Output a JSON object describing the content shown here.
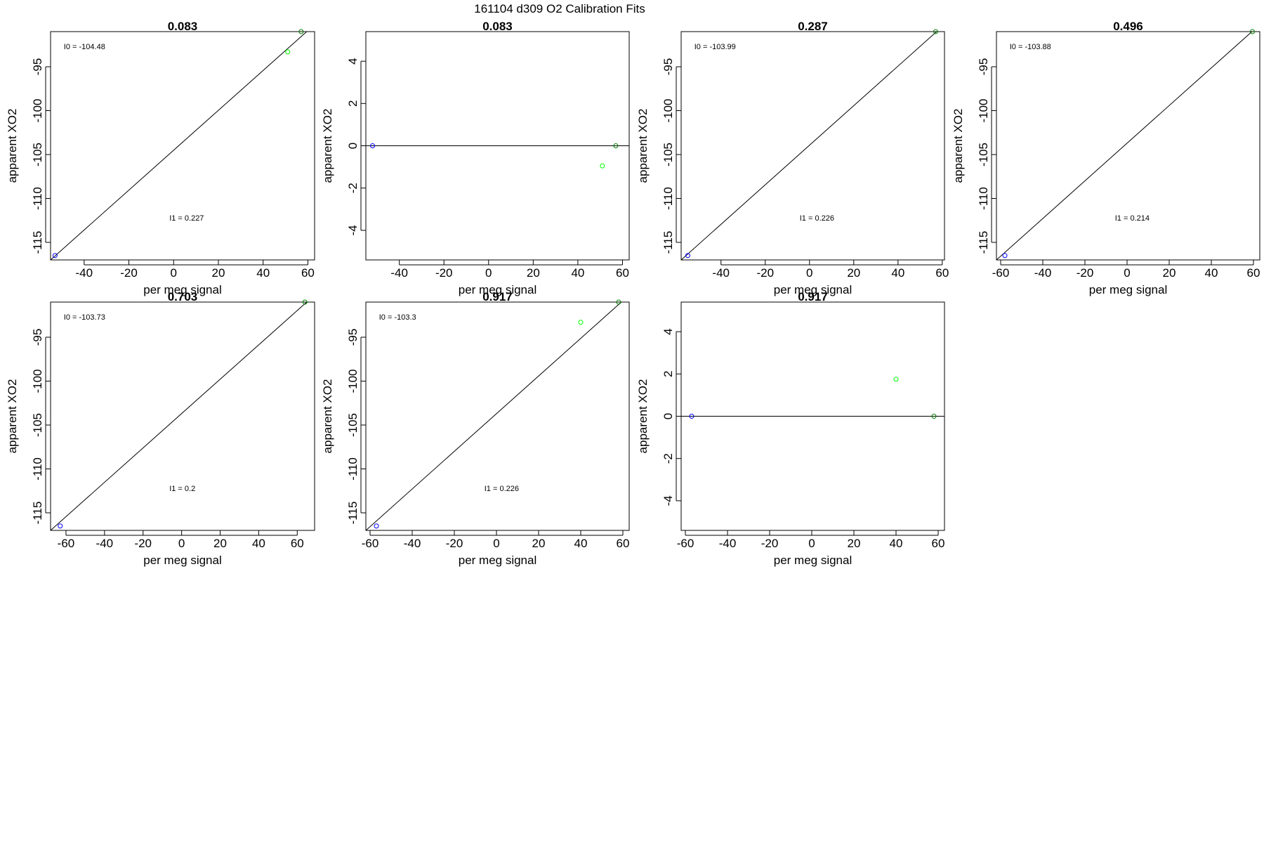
{
  "page_title": "161104   d309   O2 Calibration Fits",
  "colors": {
    "first_point": "#0000ff",
    "second_point": "#00ff00",
    "third_point": "#008000",
    "line": "#000000"
  },
  "chart_data": [
    {
      "type": "scatter",
      "title": "0.083",
      "xlabel": "per meg signal",
      "ylabel": "apparent XO2",
      "xlim": [
        -55,
        63
      ],
      "ylim": [
        -117,
        -91
      ],
      "xticks": [
        -40,
        -20,
        0,
        20,
        40,
        60
      ],
      "yticks": [
        -95,
        -100,
        -105,
        -110,
        -115
      ],
      "line": {
        "x": [
          -55,
          63
        ],
        "y": [
          -117,
          -90.2
        ]
      },
      "points": [
        {
          "x": -53,
          "y": -116.5,
          "color": "#0000ff"
        },
        {
          "x": 51,
          "y": -93.3,
          "color": "#00ff00"
        },
        {
          "x": 57,
          "y": -91,
          "color": "#008000"
        }
      ],
      "annotations": [
        "I0 =  -104.48",
        "I1 =  0.227"
      ]
    },
    {
      "type": "scatter",
      "title": "0.083",
      "xlabel": "per meg signal",
      "ylabel": "apparent XO2",
      "xlim": [
        -55,
        63
      ],
      "ylim": [
        -5.4,
        5.4
      ],
      "xticks": [
        -40,
        -20,
        0,
        20,
        40,
        60
      ],
      "yticks": [
        4,
        2,
        0,
        -2,
        -4
      ],
      "line": {
        "x": [
          -55,
          63
        ],
        "y": [
          0,
          0
        ]
      },
      "points": [
        {
          "x": -52,
          "y": 0,
          "color": "#0000ff"
        },
        {
          "x": 51,
          "y": -0.95,
          "color": "#00ff00"
        },
        {
          "x": 57,
          "y": 0,
          "color": "#008000"
        }
      ],
      "annotations": []
    },
    {
      "type": "scatter",
      "title": "0.287",
      "xlabel": "per meg signal",
      "ylabel": "apparent XO2",
      "xlim": [
        -58,
        61
      ],
      "ylim": [
        -117,
        -91
      ],
      "xticks": [
        -40,
        -20,
        0,
        20,
        40,
        60
      ],
      "yticks": [
        -95,
        -100,
        -105,
        -110,
        -115
      ],
      "line": {
        "x": [
          -58,
          61
        ],
        "y": [
          -117,
          -90.2
        ]
      },
      "points": [
        {
          "x": -55,
          "y": -116.5,
          "color": "#0000ff"
        },
        {
          "x": 57,
          "y": -91,
          "color": "#008000"
        }
      ],
      "annotations": [
        "I0 =  -103.99",
        "I1 =  0.226"
      ]
    },
    {
      "type": "scatter",
      "title": "0.496",
      "xlabel": "per meg signal",
      "ylabel": "apparent XO2",
      "xlim": [
        -62,
        63
      ],
      "ylim": [
        -117,
        -91
      ],
      "xticks": [
        -60,
        -40,
        -20,
        0,
        20,
        40,
        60
      ],
      "yticks": [
        -95,
        -100,
        -105,
        -110,
        -115
      ],
      "line": {
        "x": [
          -62,
          63
        ],
        "y": [
          -117,
          -90.2
        ]
      },
      "points": [
        {
          "x": -58,
          "y": -116.5,
          "color": "#0000ff"
        },
        {
          "x": 59.5,
          "y": -91,
          "color": "#008000"
        }
      ],
      "annotations": [
        "I0 =  -103.88",
        "I1 =  0.214"
      ]
    },
    {
      "type": "scatter",
      "title": "0.703",
      "xlabel": "per meg signal",
      "ylabel": "apparent XO2",
      "xlim": [
        -68,
        69
      ],
      "ylim": [
        -117,
        -91
      ],
      "xticks": [
        -60,
        -40,
        -20,
        0,
        20,
        40,
        60
      ],
      "yticks": [
        -95,
        -100,
        -105,
        -110,
        -115
      ],
      "line": {
        "x": [
          -68,
          69
        ],
        "y": [
          -117,
          -90.2
        ]
      },
      "points": [
        {
          "x": -63,
          "y": -116.5,
          "color": "#0000ff"
        },
        {
          "x": 64,
          "y": -91,
          "color": "#008000"
        }
      ],
      "annotations": [
        "I0 =  -103.73",
        "I1 =  0.2"
      ]
    },
    {
      "type": "scatter",
      "title": "0.917",
      "xlabel": "per meg signal",
      "ylabel": "apparent XO2",
      "xlim": [
        -62,
        63
      ],
      "ylim": [
        -117,
        -91
      ],
      "xticks": [
        -60,
        -40,
        -20,
        0,
        20,
        40,
        60
      ],
      "yticks": [
        -95,
        -100,
        -105,
        -110,
        -115
      ],
      "line": {
        "x": [
          -62,
          63
        ],
        "y": [
          -117,
          -90.2
        ]
      },
      "points": [
        {
          "x": -57,
          "y": -116.5,
          "color": "#0000ff"
        },
        {
          "x": 40,
          "y": -93.3,
          "color": "#00ff00"
        },
        {
          "x": 58,
          "y": -91,
          "color": "#008000"
        }
      ],
      "annotations": [
        "I0 =  -103.3",
        "I1 =  0.226"
      ]
    },
    {
      "type": "scatter",
      "title": "0.917",
      "xlabel": "per meg signal",
      "ylabel": "apparent XO2",
      "xlim": [
        -62,
        63
      ],
      "ylim": [
        -5.4,
        5.4
      ],
      "xticks": [
        -60,
        -40,
        -20,
        0,
        20,
        40,
        60
      ],
      "yticks": [
        4,
        2,
        0,
        -2,
        -4
      ],
      "line": {
        "x": [
          -62,
          63
        ],
        "y": [
          0,
          0
        ]
      },
      "points": [
        {
          "x": -57,
          "y": 0,
          "color": "#0000ff"
        },
        {
          "x": 40,
          "y": 1.75,
          "color": "#00ff00"
        },
        {
          "x": 58,
          "y": 0,
          "color": "#008000"
        }
      ],
      "annotations": []
    }
  ]
}
